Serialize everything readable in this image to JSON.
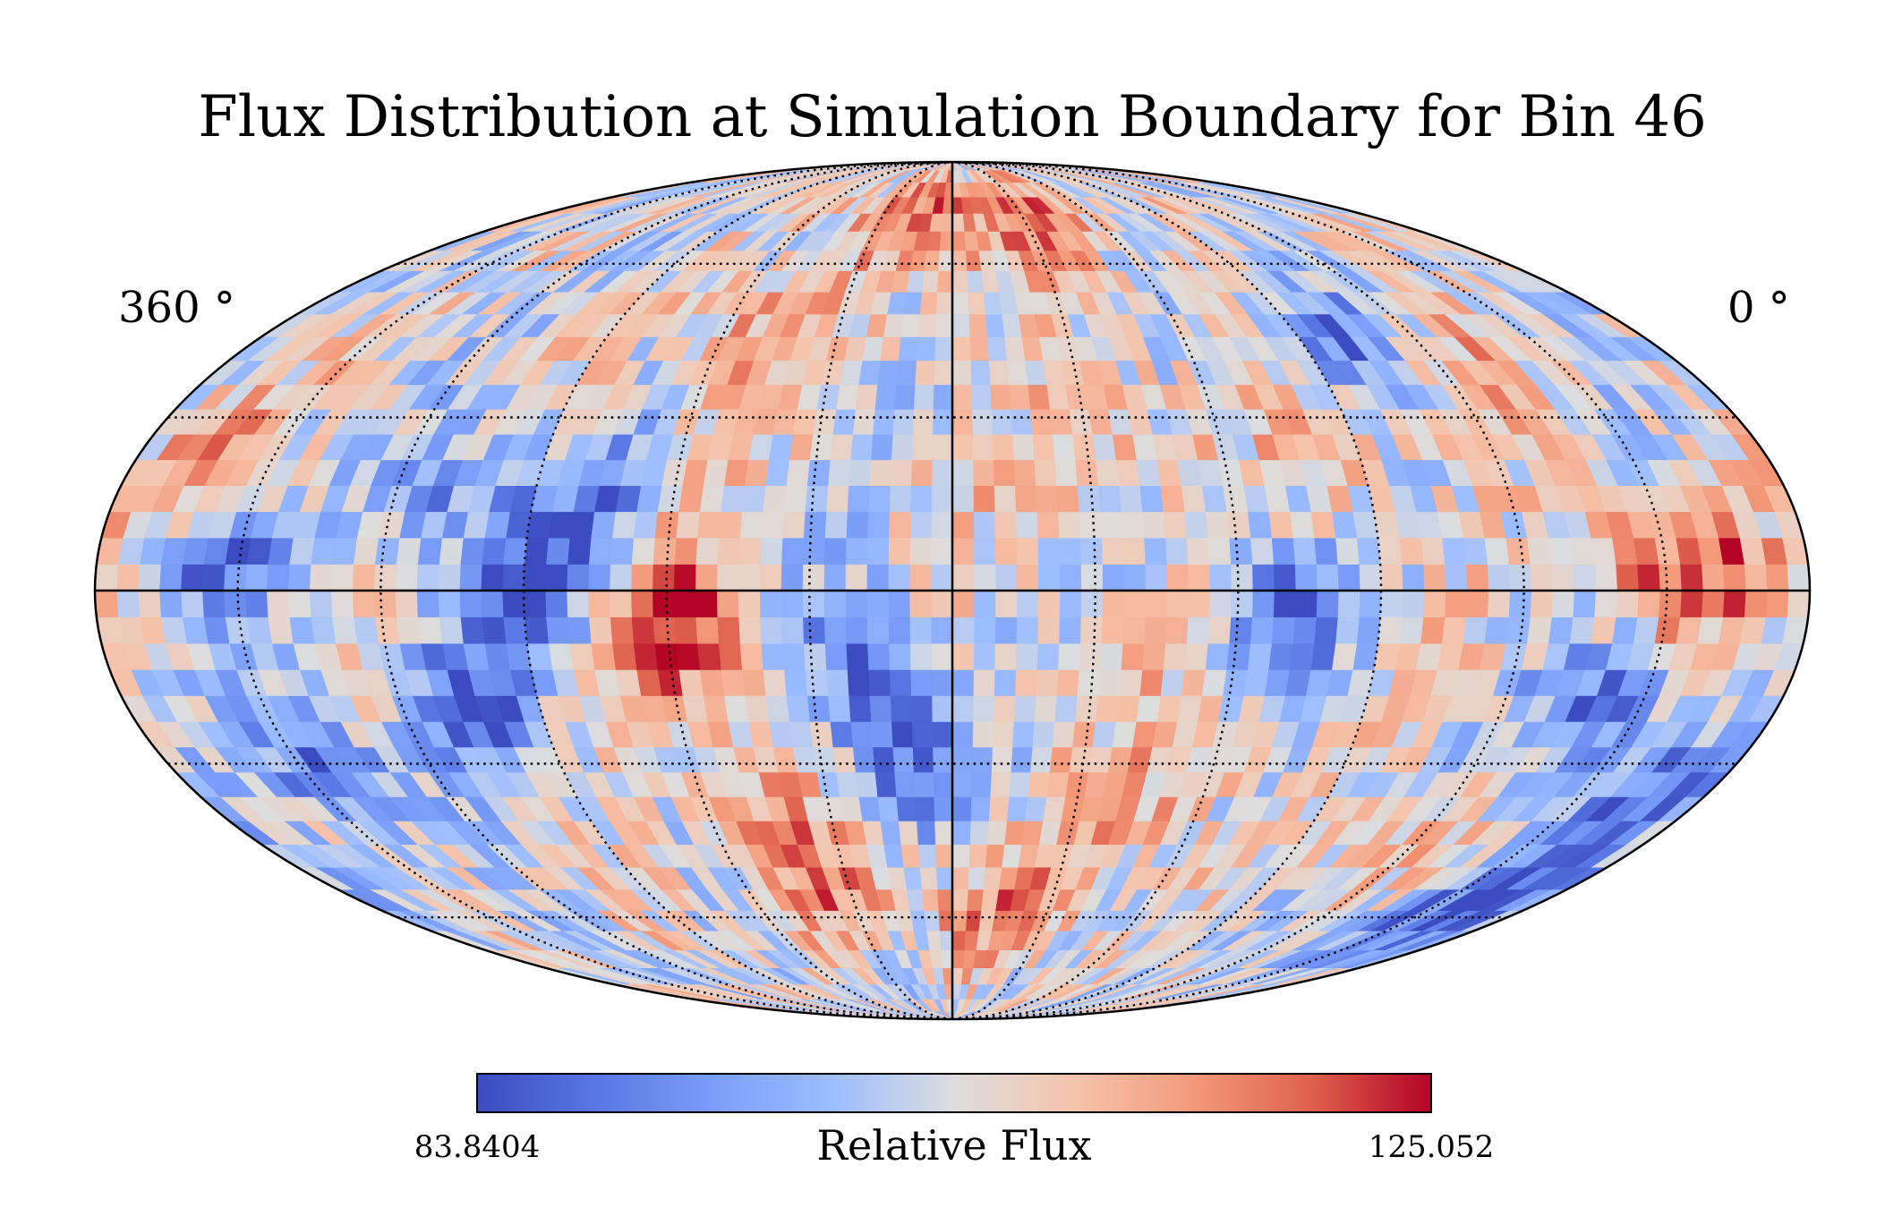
{
  "chart_data": {
    "type": "heatmap",
    "projection": "mollweide",
    "title": "Flux Distribution at Simulation Boundary for Bin 46",
    "lon_left_label": "360 °",
    "lon_right_label": "0 °",
    "colorbar": {
      "label": "Relative Flux",
      "min": 83.8404,
      "max": 125.052,
      "min_label": "83.8404",
      "max_label": "125.052",
      "colormap": "coolwarm",
      "orientation": "horizontal"
    },
    "graticule": {
      "meridian_step_deg": 30,
      "parallel_step_deg": 30,
      "style": "dotted"
    },
    "hotspots": [
      {
        "lon": 270,
        "lat": 0,
        "value": 83.9
      },
      {
        "lon": 285,
        "lat": -20,
        "value": 86
      },
      {
        "lon": 255,
        "lat": 12,
        "value": 88
      },
      {
        "lon": 290,
        "lat": 18,
        "value": 91
      },
      {
        "lon": 228,
        "lat": -35,
        "value": 112
      },
      {
        "lon": 218,
        "lat": -52,
        "value": 116
      },
      {
        "lon": 232,
        "lat": -10,
        "value": 115
      },
      {
        "lon": 242,
        "lat": -2,
        "value": 125.052
      },
      {
        "lon": 200,
        "lat": -12,
        "value": 88
      },
      {
        "lon": 190,
        "lat": -28,
        "value": 86
      },
      {
        "lon": 160,
        "lat": 12,
        "value": 110
      },
      {
        "lon": 165,
        "lat": -58,
        "value": 115
      },
      {
        "lon": 140,
        "lat": 30,
        "value": 110
      },
      {
        "lon": 125,
        "lat": -25,
        "value": 110
      },
      {
        "lon": 110,
        "lat": -5,
        "value": 88
      },
      {
        "lon": 80,
        "lat": 45,
        "value": 90
      },
      {
        "lon": 55,
        "lat": 40,
        "value": 112
      },
      {
        "lon": 35,
        "lat": 2,
        "value": 116
      },
      {
        "lon": 20,
        "lat": 5,
        "value": 118
      },
      {
        "lon": 40,
        "lat": -20,
        "value": 87
      },
      {
        "lon": 20,
        "lat": -58,
        "value": 86
      },
      {
        "lon": 15,
        "lat": -35,
        "value": 89
      },
      {
        "lon": 345,
        "lat": 22,
        "value": 118
      },
      {
        "lon": 335,
        "lat": 5,
        "value": 87
      },
      {
        "lon": 325,
        "lat": -30,
        "value": 86
      },
      {
        "lon": 230,
        "lat": 45,
        "value": 115
      },
      {
        "lon": 205,
        "lat": 70,
        "value": 110
      },
      {
        "lon": 175,
        "lat": 72,
        "value": 112
      },
      {
        "lon": 150,
        "lat": 68,
        "value": 112
      },
      {
        "lon": 135,
        "lat": -40,
        "value": 112
      },
      {
        "lon": 60,
        "lat": -45,
        "value": 110
      },
      {
        "lon": 95,
        "lat": 25,
        "value": 112
      }
    ]
  }
}
